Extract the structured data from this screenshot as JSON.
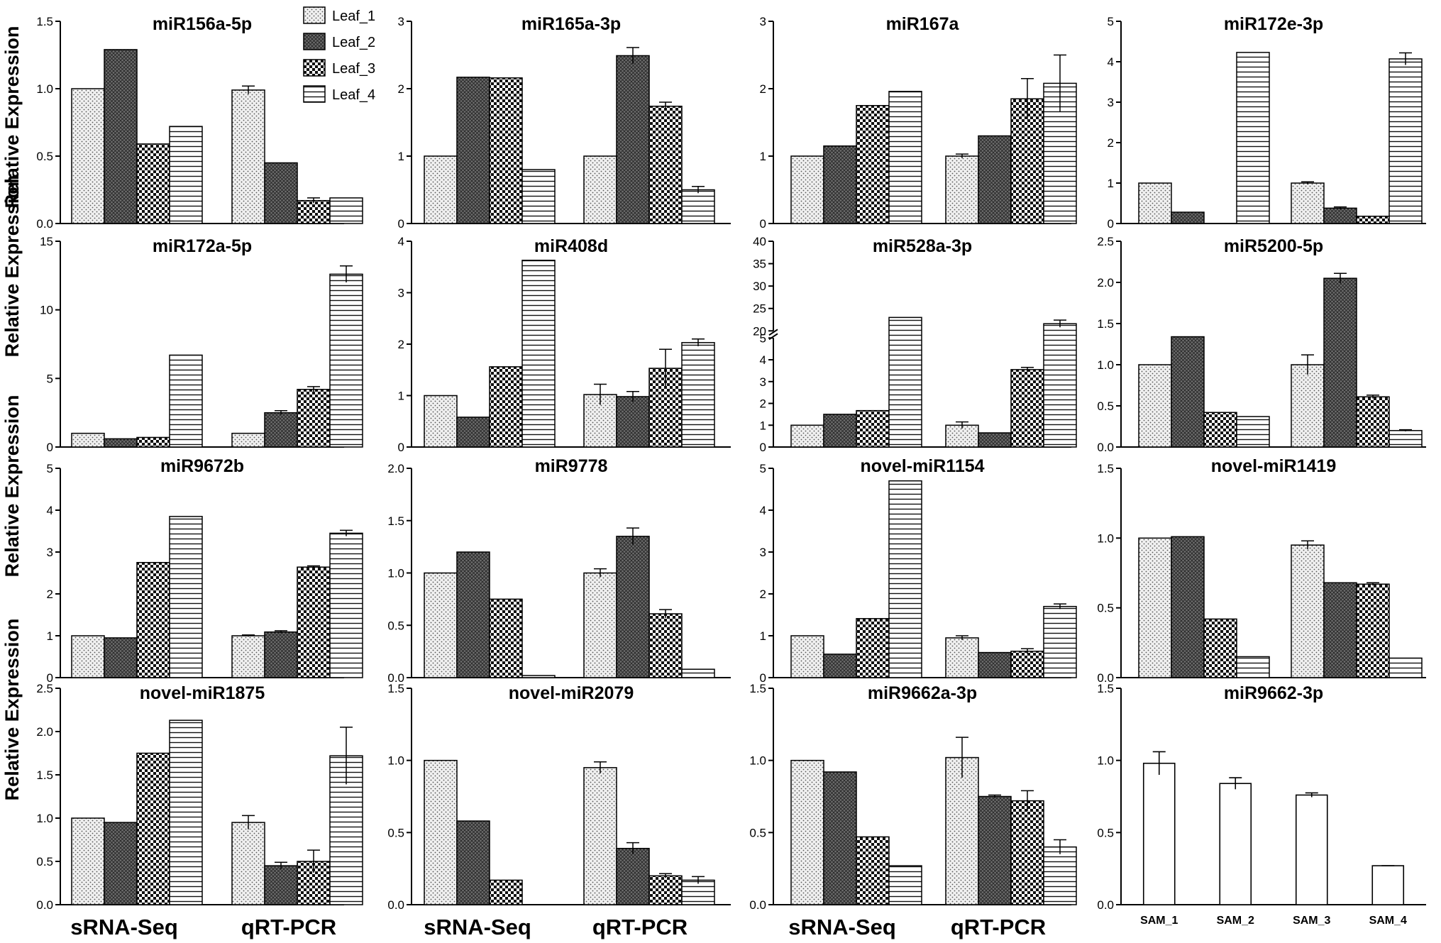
{
  "figure": {
    "ylabel": "Relative Expression",
    "legend": [
      "Leaf_1",
      "Leaf_2",
      "Leaf_3",
      "Leaf_4"
    ],
    "group_labels": [
      "sRNA-Seq",
      "qRT-PCR"
    ]
  },
  "chart_data": [
    {
      "type": "bar",
      "title": "miR156a-5p",
      "categories": [
        "sRNA-Seq",
        "qRT-PCR"
      ],
      "ylim": [
        0,
        1.5
      ],
      "yticks": [
        "0.0",
        "0.5",
        "1.0",
        "1.5"
      ],
      "series": [
        {
          "name": "Leaf_1",
          "values": [
            1.0,
            0.99
          ],
          "errors": [
            0,
            0.03
          ]
        },
        {
          "name": "Leaf_2",
          "values": [
            1.29,
            0.45
          ],
          "errors": [
            0,
            0
          ]
        },
        {
          "name": "Leaf_3",
          "values": [
            0.59,
            0.17
          ],
          "errors": [
            0,
            0.02
          ]
        },
        {
          "name": "Leaf_4",
          "values": [
            0.72,
            0.19
          ],
          "errors": [
            0,
            0
          ]
        }
      ]
    },
    {
      "type": "bar",
      "title": "miR165a-3p",
      "categories": [
        "sRNA-Seq",
        "qRT-PCR"
      ],
      "ylim": [
        0,
        3
      ],
      "yticks": [
        "0",
        "1",
        "2",
        "3"
      ],
      "series": [
        {
          "name": "Leaf_1",
          "values": [
            1.0,
            1.0
          ],
          "errors": [
            0,
            0
          ]
        },
        {
          "name": "Leaf_2",
          "values": [
            2.17,
            2.49
          ],
          "errors": [
            0,
            0.12
          ]
        },
        {
          "name": "Leaf_3",
          "values": [
            2.16,
            1.74
          ],
          "errors": [
            0,
            0.06
          ]
        },
        {
          "name": "Leaf_4",
          "values": [
            0.8,
            0.5
          ],
          "errors": [
            0,
            0.05
          ]
        }
      ]
    },
    {
      "type": "bar",
      "title": "miR167a",
      "categories": [
        "sRNA-Seq",
        "qRT-PCR"
      ],
      "ylim": [
        0,
        3
      ],
      "yticks": [
        "0",
        "1",
        "2",
        "3"
      ],
      "series": [
        {
          "name": "Leaf_1",
          "values": [
            1.0,
            1.0
          ],
          "errors": [
            0,
            0.03
          ]
        },
        {
          "name": "Leaf_2",
          "values": [
            1.15,
            1.3
          ],
          "errors": [
            0,
            0
          ]
        },
        {
          "name": "Leaf_3",
          "values": [
            1.75,
            1.85
          ],
          "errors": [
            0,
            0.3
          ]
        },
        {
          "name": "Leaf_4",
          "values": [
            1.96,
            2.08
          ],
          "errors": [
            0,
            0.42
          ]
        }
      ]
    },
    {
      "type": "bar",
      "title": "miR172e-3p",
      "categories": [
        "sRNA-Seq",
        "qRT-PCR"
      ],
      "ylim": [
        0,
        5
      ],
      "yticks": [
        "0",
        "1",
        "2",
        "3",
        "4",
        "5"
      ],
      "series": [
        {
          "name": "Leaf_1",
          "values": [
            1.0,
            1.0
          ],
          "errors": [
            0,
            0.03
          ]
        },
        {
          "name": "Leaf_2",
          "values": [
            0.28,
            0.38
          ],
          "errors": [
            0,
            0.03
          ]
        },
        {
          "name": "Leaf_3",
          "values": [
            0,
            0.18
          ],
          "errors": [
            0,
            0
          ]
        },
        {
          "name": "Leaf_4",
          "values": [
            4.23,
            4.07
          ],
          "errors": [
            0,
            0.15
          ]
        }
      ]
    },
    {
      "type": "bar",
      "title": "miR172a-5p",
      "categories": [
        "sRNA-Seq",
        "qRT-PCR"
      ],
      "ylim": [
        0,
        15
      ],
      "yticks": [
        "0",
        "5",
        "10",
        "15"
      ],
      "series": [
        {
          "name": "Leaf_1",
          "values": [
            1.0,
            1.0
          ],
          "errors": [
            0,
            0
          ]
        },
        {
          "name": "Leaf_2",
          "values": [
            0.6,
            2.5
          ],
          "errors": [
            0,
            0.15
          ]
        },
        {
          "name": "Leaf_3",
          "values": [
            0.7,
            4.2
          ],
          "errors": [
            0,
            0.2
          ]
        },
        {
          "name": "Leaf_4",
          "values": [
            6.7,
            12.6
          ],
          "errors": [
            0,
            0.6
          ]
        }
      ]
    },
    {
      "type": "bar",
      "title": "miR408d",
      "categories": [
        "sRNA-Seq",
        "qRT-PCR"
      ],
      "ylim": [
        0,
        4
      ],
      "yticks": [
        "0",
        "1",
        "2",
        "3",
        "4"
      ],
      "series": [
        {
          "name": "Leaf_1",
          "values": [
            1.0,
            1.02
          ],
          "errors": [
            0,
            0.2
          ]
        },
        {
          "name": "Leaf_2",
          "values": [
            0.58,
            0.98
          ],
          "errors": [
            0,
            0.1
          ]
        },
        {
          "name": "Leaf_3",
          "values": [
            1.56,
            1.53
          ],
          "errors": [
            0,
            0.37
          ]
        },
        {
          "name": "Leaf_4",
          "values": [
            3.63,
            2.03
          ],
          "errors": [
            0,
            0.07
          ]
        }
      ]
    },
    {
      "type": "bar",
      "title": "miR528a-3p",
      "categories": [
        "sRNA-Seq",
        "qRT-PCR"
      ],
      "ylim": [
        0,
        40
      ],
      "yticks": [
        "0",
        "1",
        "2",
        "3",
        "4",
        "5",
        "20",
        "25",
        "30",
        "35",
        "40"
      ],
      "axis_break": [
        5,
        20
      ],
      "series": [
        {
          "name": "Leaf_1",
          "values": [
            1.0,
            1.0
          ],
          "errors": [
            0,
            0.15
          ]
        },
        {
          "name": "Leaf_2",
          "values": [
            1.5,
            0.65
          ],
          "errors": [
            0,
            0
          ]
        },
        {
          "name": "Leaf_3",
          "values": [
            1.67,
            3.55
          ],
          "errors": [
            0,
            0.1
          ]
        },
        {
          "name": "Leaf_4",
          "values": [
            23,
            21.6
          ],
          "errors": [
            0,
            0.8
          ]
        }
      ]
    },
    {
      "type": "bar",
      "title": "miR5200-5p",
      "categories": [
        "sRNA-Seq",
        "qRT-PCR"
      ],
      "ylim": [
        0,
        2.5
      ],
      "yticks": [
        "0.0",
        "0.5",
        "1.0",
        "1.5",
        "2.0",
        "2.5"
      ],
      "series": [
        {
          "name": "Leaf_1",
          "values": [
            1.0,
            1.0
          ],
          "errors": [
            0,
            0.12
          ]
        },
        {
          "name": "Leaf_2",
          "values": [
            1.34,
            2.05
          ],
          "errors": [
            0,
            0.06
          ]
        },
        {
          "name": "Leaf_3",
          "values": [
            0.42,
            0.61
          ],
          "errors": [
            0,
            0.02
          ]
        },
        {
          "name": "Leaf_4",
          "values": [
            0.37,
            0.2
          ],
          "errors": [
            0,
            0.01
          ]
        }
      ]
    },
    {
      "type": "bar",
      "title": "miR9672b",
      "categories": [
        "sRNA-Seq",
        "qRT-PCR"
      ],
      "ylim": [
        0,
        5
      ],
      "yticks": [
        "0",
        "1",
        "2",
        "3",
        "4",
        "5"
      ],
      "series": [
        {
          "name": "Leaf_1",
          "values": [
            1.0,
            1.0
          ],
          "errors": [
            0,
            0.02
          ]
        },
        {
          "name": "Leaf_2",
          "values": [
            0.95,
            1.09
          ],
          "errors": [
            0,
            0.03
          ]
        },
        {
          "name": "Leaf_3",
          "values": [
            2.75,
            2.64
          ],
          "errors": [
            0,
            0.03
          ]
        },
        {
          "name": "Leaf_4",
          "values": [
            3.85,
            3.45
          ],
          "errors": [
            0,
            0.07
          ]
        }
      ]
    },
    {
      "type": "bar",
      "title": "miR9778",
      "categories": [
        "sRNA-Seq",
        "qRT-PCR"
      ],
      "ylim": [
        0,
        2
      ],
      "yticks": [
        "0.0",
        "0.5",
        "1.0",
        "1.5",
        "2.0"
      ],
      "series": [
        {
          "name": "Leaf_1",
          "values": [
            1.0,
            1.0
          ],
          "errors": [
            0,
            0.04
          ]
        },
        {
          "name": "Leaf_2",
          "values": [
            1.2,
            1.35
          ],
          "errors": [
            0,
            0.08
          ]
        },
        {
          "name": "Leaf_3",
          "values": [
            0.75,
            0.61
          ],
          "errors": [
            0,
            0.04
          ]
        },
        {
          "name": "Leaf_4",
          "values": [
            0.02,
            0.08
          ],
          "errors": [
            0,
            0
          ]
        }
      ]
    },
    {
      "type": "bar",
      "title": "novel-miR1154",
      "categories": [
        "sRNA-Seq",
        "qRT-PCR"
      ],
      "ylim": [
        0,
        5
      ],
      "yticks": [
        "0",
        "1",
        "2",
        "3",
        "4",
        "5"
      ],
      "series": [
        {
          "name": "Leaf_1",
          "values": [
            1.0,
            0.95
          ],
          "errors": [
            0,
            0.05
          ]
        },
        {
          "name": "Leaf_2",
          "values": [
            0.56,
            0.6
          ],
          "errors": [
            0,
            0
          ]
        },
        {
          "name": "Leaf_3",
          "values": [
            1.41,
            0.63
          ],
          "errors": [
            0,
            0.06
          ]
        },
        {
          "name": "Leaf_4",
          "values": [
            4.7,
            1.7
          ],
          "errors": [
            0,
            0.06
          ]
        }
      ]
    },
    {
      "type": "bar",
      "title": "novel-miR1419",
      "categories": [
        "sRNA-Seq",
        "qRT-PCR"
      ],
      "ylim": [
        0,
        1.5
      ],
      "yticks": [
        "0.0",
        "0.5",
        "1.0",
        "1.5"
      ],
      "series": [
        {
          "name": "Leaf_1",
          "values": [
            1.0,
            0.95
          ],
          "errors": [
            0,
            0.03
          ]
        },
        {
          "name": "Leaf_2",
          "values": [
            1.01,
            0.68
          ],
          "errors": [
            0,
            0
          ]
        },
        {
          "name": "Leaf_3",
          "values": [
            0.42,
            0.67
          ],
          "errors": [
            0,
            0.01
          ]
        },
        {
          "name": "Leaf_4",
          "values": [
            0.15,
            0.14
          ],
          "errors": [
            0,
            0
          ]
        }
      ]
    },
    {
      "type": "bar",
      "title": "novel-miR1875",
      "categories": [
        "sRNA-Seq",
        "qRT-PCR"
      ],
      "ylim": [
        0,
        2.5
      ],
      "yticks": [
        "0.0",
        "0.5",
        "1.0",
        "1.5",
        "2.0",
        "2.5"
      ],
      "series": [
        {
          "name": "Leaf_1",
          "values": [
            1.0,
            0.95
          ],
          "errors": [
            0,
            0.08
          ]
        },
        {
          "name": "Leaf_2",
          "values": [
            0.95,
            0.45
          ],
          "errors": [
            0,
            0.04
          ]
        },
        {
          "name": "Leaf_3",
          "values": [
            1.75,
            0.5
          ],
          "errors": [
            0,
            0.13
          ]
        },
        {
          "name": "Leaf_4",
          "values": [
            2.13,
            1.72
          ],
          "errors": [
            0,
            0.33
          ]
        }
      ]
    },
    {
      "type": "bar",
      "title": "novel-miR2079",
      "categories": [
        "sRNA-Seq",
        "qRT-PCR"
      ],
      "ylim": [
        0,
        1.5
      ],
      "yticks": [
        "0.0",
        "0.5",
        "1.0",
        "1.5"
      ],
      "series": [
        {
          "name": "Leaf_1",
          "values": [
            1.0,
            0.95
          ],
          "errors": [
            0,
            0.04
          ]
        },
        {
          "name": "Leaf_2",
          "values": [
            0.58,
            0.39
          ],
          "errors": [
            0,
            0.04
          ]
        },
        {
          "name": "Leaf_3",
          "values": [
            0.17,
            0.2
          ],
          "errors": [
            0,
            0.015
          ]
        },
        {
          "name": "Leaf_4",
          "values": [
            0,
            0.17
          ],
          "errors": [
            0,
            0.025
          ]
        }
      ]
    },
    {
      "type": "bar",
      "title": "miR9662a-3p",
      "categories": [
        "sRNA-Seq",
        "qRT-PCR"
      ],
      "ylim": [
        0,
        1.5
      ],
      "yticks": [
        "0.0",
        "0.5",
        "1.0",
        "1.5"
      ],
      "series": [
        {
          "name": "Leaf_1",
          "values": [
            1.0,
            1.02
          ],
          "errors": [
            0,
            0.14
          ]
        },
        {
          "name": "Leaf_2",
          "values": [
            0.92,
            0.75
          ],
          "errors": [
            0,
            0.01
          ]
        },
        {
          "name": "Leaf_3",
          "values": [
            0.47,
            0.72
          ],
          "errors": [
            0,
            0.07
          ]
        },
        {
          "name": "Leaf_4",
          "values": [
            0.27,
            0.4
          ],
          "errors": [
            0,
            0.05
          ]
        }
      ]
    },
    {
      "type": "bar",
      "title": "miR9662-3p",
      "categories": [
        "SAM_1",
        "SAM_2",
        "SAM_3",
        "SAM_4"
      ],
      "ylim": [
        0,
        1.5
      ],
      "yticks": [
        "0.0",
        "0.5",
        "1.0",
        "1.5"
      ],
      "series": [
        {
          "name": "SAM",
          "values": [
            0.98,
            0.84,
            0.76,
            0.27
          ],
          "errors": [
            0.08,
            0.04,
            0.015,
            0
          ]
        }
      ]
    }
  ]
}
